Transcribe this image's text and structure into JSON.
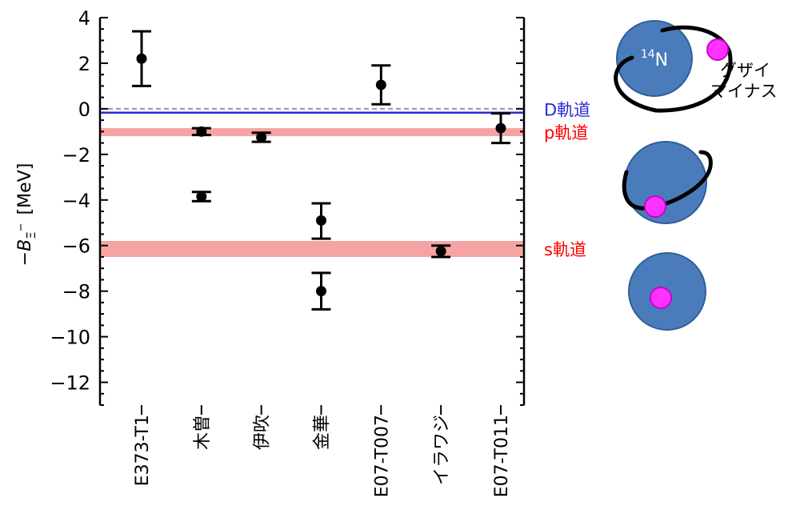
{
  "chart_data": {
    "type": "scatter",
    "ylabel": {
      "prefix": "−",
      "symbol": "B",
      "sub": "Ξ",
      "sup": "−",
      "unit": "[MeV]"
    },
    "ylim": [
      -13,
      4
    ],
    "yticks": [
      4,
      2,
      0,
      -2,
      -4,
      -6,
      -8,
      -10,
      -12
    ],
    "ytick_labels": [
      "4",
      "2",
      "0",
      "−2",
      "−4",
      "−6",
      "−8",
      "−10",
      "−12"
    ],
    "categories": [
      "E373-T1",
      "木曽",
      "伊吹",
      "金華",
      "E07-T007",
      "イラワジ",
      "E07-T011"
    ],
    "category_colors": [
      "#000000",
      "#000000",
      "#000000",
      "#000000",
      "#000000",
      "#ff0000",
      "#000000"
    ],
    "points": [
      {
        "category": "E373-T1",
        "y": 2.2,
        "err_low": 1.2,
        "err_high": 1.2
      },
      {
        "category": "木曽",
        "y": -1.0,
        "err_low": 0.15,
        "err_high": 0.15
      },
      {
        "category": "木曽",
        "y": -3.85,
        "err_low": 0.2,
        "err_high": 0.2
      },
      {
        "category": "伊吹",
        "y": -1.25,
        "err_low": 0.2,
        "err_high": 0.2
      },
      {
        "category": "金華",
        "y": -4.9,
        "err_low": 0.8,
        "err_high": 0.75
      },
      {
        "category": "金華",
        "y": -8.0,
        "err_low": 0.8,
        "err_high": 0.8
      },
      {
        "category": "E07-T007",
        "y": 1.05,
        "err_low": 0.85,
        "err_high": 0.85
      },
      {
        "category": "イラワジ",
        "y": -6.25,
        "err_low": 0.25,
        "err_high": 0.25
      },
      {
        "category": "E07-T011",
        "y": -0.85,
        "err_low": 0.65,
        "err_high": 0.65
      }
    ],
    "reference_line": {
      "y": 0,
      "style": "dashed",
      "color": "#999999"
    },
    "orbitals": [
      {
        "label": "D軌道",
        "y": -0.17,
        "kind": "line",
        "color": "#2b2bd6"
      },
      {
        "label": "p軌道",
        "y_range": [
          -1.2,
          -0.85
        ],
        "kind": "band",
        "color": "#f5a3a3",
        "label_color": "#ff0000"
      },
      {
        "label": "s軌道",
        "y_range": [
          -6.5,
          -5.8
        ],
        "kind": "band",
        "color": "#f5a3a3",
        "label_color": "#ff0000"
      }
    ]
  },
  "illustration": {
    "nucleus_mass": "14",
    "nucleus_symbol": "N",
    "xi_label_line1": "グザイ",
    "xi_label_line2": "マイナス",
    "nucleus_color": "#4a7cbc",
    "xi_color": "#ff33ff"
  }
}
